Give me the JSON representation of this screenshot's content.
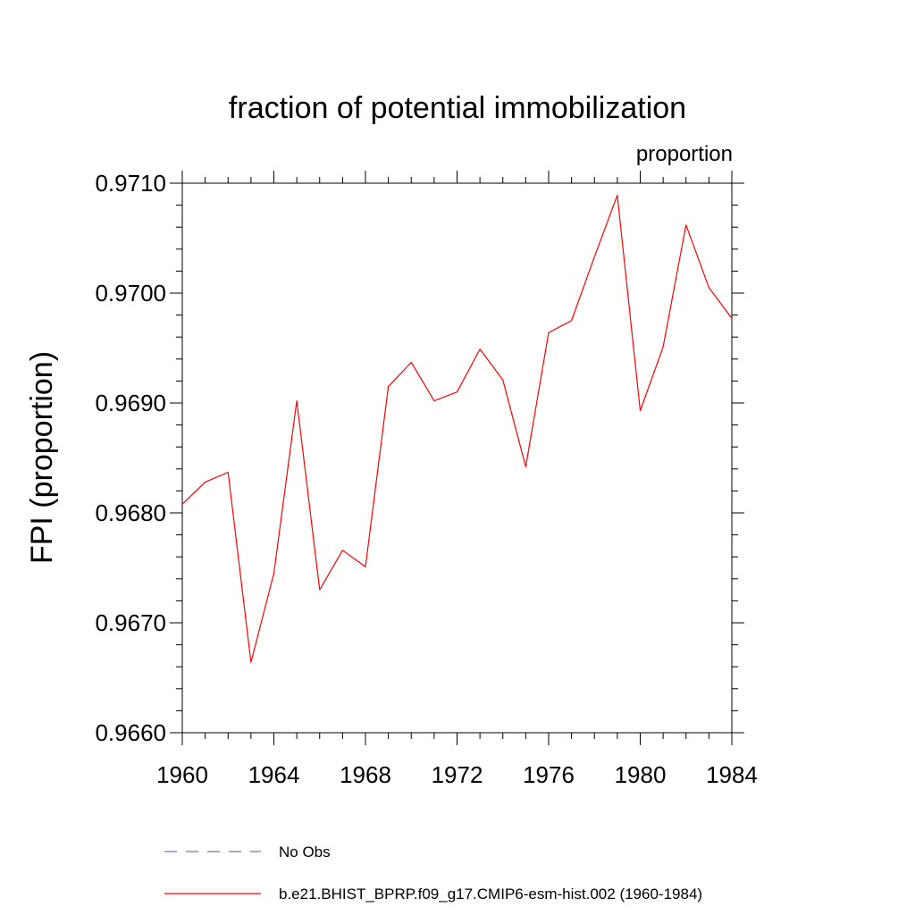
{
  "chart_data": {
    "type": "line",
    "title": "fraction of potential immobilization",
    "subtitle": "proportion",
    "xlabel": "",
    "ylabel": "FPI  (proportion)",
    "xlim": [
      1960,
      1984
    ],
    "ylim": [
      0.966,
      0.971
    ],
    "x_ticks": [
      1960,
      1964,
      1968,
      1972,
      1976,
      1980,
      1984
    ],
    "x_tick_labels": [
      "1960",
      "1964",
      "1968",
      "1972",
      "1976",
      "1980",
      "1984"
    ],
    "y_ticks": [
      0.966,
      0.967,
      0.968,
      0.969,
      0.97,
      0.971
    ],
    "y_tick_labels": [
      "0.9660",
      "0.9670",
      "0.9680",
      "0.9690",
      "0.9700",
      "0.9710"
    ],
    "grid": false,
    "legend_position": "bottom",
    "series": [
      {
        "name": "No Obs",
        "color": "#7b6fb0",
        "dash": "dashed",
        "x": [],
        "values": []
      },
      {
        "name": "b.e21.BHIST_BPRP.f09_g17.CMIP6-esm-hist.002 (1960-1984)",
        "color": "#ff0000",
        "dash": "solid",
        "x": [
          1960,
          1961,
          1962,
          1963,
          1964,
          1965,
          1966,
          1967,
          1968,
          1969,
          1970,
          1971,
          1972,
          1973,
          1974,
          1975,
          1976,
          1977,
          1978,
          1979,
          1980,
          1981,
          1982,
          1983,
          1984
        ],
        "values": [
          0.96808,
          0.96828,
          0.96837,
          0.96664,
          0.96745,
          0.96902,
          0.9673,
          0.96766,
          0.96751,
          0.96915,
          0.96937,
          0.96902,
          0.9691,
          0.96949,
          0.96921,
          0.96842,
          0.96964,
          0.96975,
          0.97033,
          0.97089,
          0.96893,
          0.96951,
          0.97062,
          0.97005,
          0.96977
        ]
      }
    ]
  }
}
